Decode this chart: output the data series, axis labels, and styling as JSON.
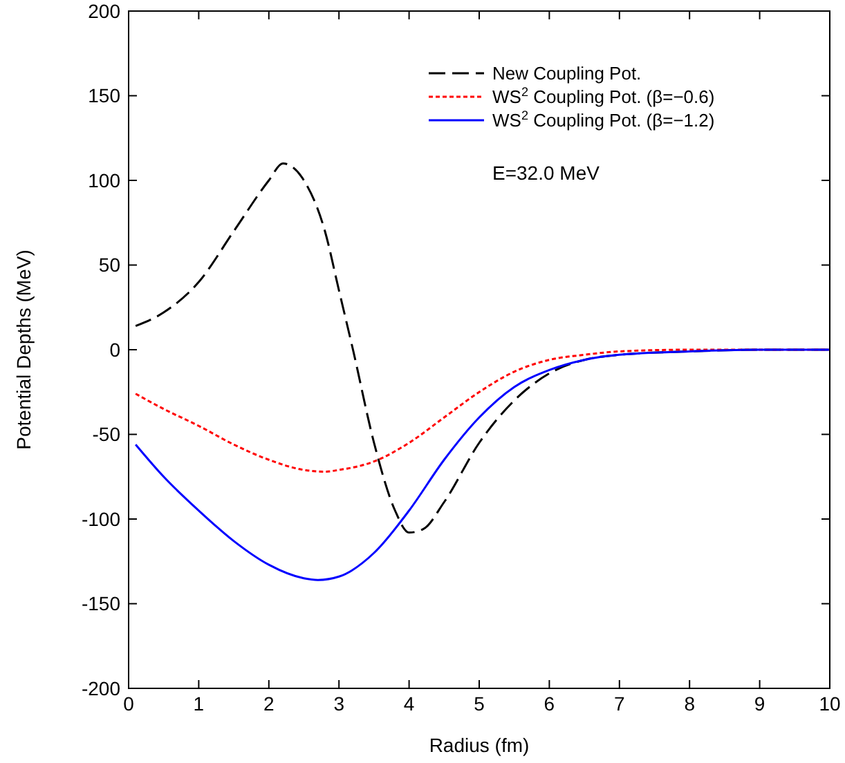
{
  "chart_data": {
    "type": "line",
    "xlabel": "Radius (fm)",
    "ylabel": "Potential Depths (MeV)",
    "xlim": [
      0,
      10
    ],
    "ylim": [
      -200,
      200
    ],
    "xticks": [
      0,
      1,
      2,
      3,
      4,
      5,
      6,
      7,
      8,
      9,
      10
    ],
    "yticks": [
      -200,
      -150,
      -100,
      -50,
      0,
      50,
      100,
      150,
      200
    ],
    "legend": "top right",
    "grid": false,
    "annotations": [
      "E=32.0 MeV"
    ],
    "series": [
      {
        "name": "New Coupling Pot.",
        "color": "#000000",
        "line_style": "dashed",
        "x": [
          0.1,
          0.5,
          1,
          1.5,
          2,
          2.2,
          2.5,
          2.8,
          3,
          3.2,
          3.5,
          3.8,
          4,
          4.2,
          4.5,
          5,
          5.5,
          6,
          6.5,
          7,
          8,
          9,
          10
        ],
        "values": [
          14,
          22,
          40,
          70,
          100,
          110,
          100,
          70,
          35,
          0,
          -55,
          -95,
          -108,
          -106,
          -90,
          -55,
          -30,
          -14,
          -6,
          -3,
          -1,
          0,
          0
        ]
      },
      {
        "name": "WS$^{2}$ Coupling Pot. (β=−0.6)",
        "color": "#ff0000",
        "line_style": "dotted",
        "x": [
          0.1,
          0.5,
          1,
          1.5,
          2,
          2.5,
          2.8,
          3,
          3.5,
          4,
          4.5,
          5,
          5.5,
          6,
          6.5,
          7,
          8,
          10
        ],
        "values": [
          -26,
          -35,
          -45,
          -56,
          -65,
          -71,
          -72,
          -71,
          -66,
          -55,
          -40,
          -25,
          -13,
          -6,
          -3,
          -1,
          0,
          0
        ]
      },
      {
        "name": "WS$^{2}$ Coupling Pot. (β=−1.2)",
        "color": "#0000ff",
        "line_style": "solid",
        "x": [
          0.1,
          0.5,
          1,
          1.5,
          2,
          2.5,
          2.7,
          3,
          3.5,
          4,
          4.5,
          5,
          5.5,
          6,
          6.5,
          7,
          8,
          9,
          10
        ],
        "values": [
          -56,
          -75,
          -95,
          -113,
          -127,
          -135,
          -136,
          -134,
          -120,
          -95,
          -65,
          -40,
          -22,
          -12,
          -6,
          -3,
          -1,
          0,
          0
        ]
      }
    ]
  }
}
